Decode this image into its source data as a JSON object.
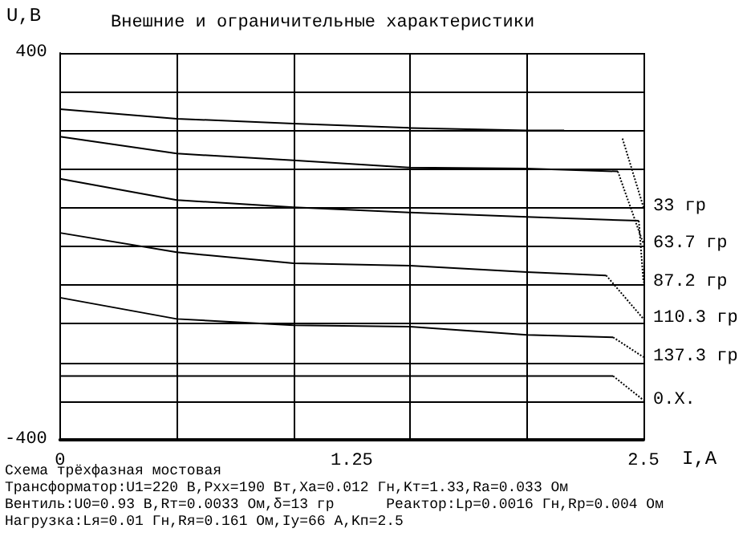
{
  "chart_data": {
    "type": "line",
    "title": "Внешние и ограничительные характеристики",
    "xlabel": "I,А",
    "ylabel": "U,В",
    "xlim": [
      0,
      2.5
    ],
    "ylim": [
      -400,
      400
    ],
    "xticks": [
      0,
      {
        "value": 0.5,
        "label": null
      },
      {
        "value": 1,
        "label": null
      },
      1.25,
      {
        "value": 1.5,
        "label": null
      },
      {
        "value": 2,
        "label": null
      },
      2.5
    ],
    "yticks": [
      {
        "value": -400,
        "label": "-400"
      },
      {
        "value": -320,
        "label": null
      },
      {
        "value": -240,
        "label": null
      },
      {
        "value": -160,
        "label": null
      },
      {
        "value": -80,
        "label": null
      },
      {
        "value": 0,
        "label": null
      },
      {
        "value": 80,
        "label": null
      },
      {
        "value": 160,
        "label": null
      },
      {
        "value": 240,
        "label": null
      },
      {
        "value": 320,
        "label": null
      },
      {
        "value": 400,
        "label": "400"
      }
    ],
    "grid": true,
    "legend": false,
    "marker": "none",
    "series": [
      {
        "color": "#000000",
        "line_style": "solid",
        "x": [
          0,
          0.5,
          1,
          1.5,
          2,
          2.16
        ],
        "values": [
          284,
          264,
          254,
          245,
          240,
          240
        ]
      },
      {
        "color": "#000000",
        "line_style": "solid",
        "x": [
          0,
          0.5,
          1,
          1.5,
          2,
          2.39
        ],
        "values": [
          227,
          192,
          178,
          163,
          161,
          155
        ]
      },
      {
        "color": "#000000",
        "line_style": "solid",
        "x": [
          0,
          0.5,
          1,
          1.5,
          2,
          2.48
        ],
        "values": [
          140,
          96,
          81,
          70,
          61,
          53
        ]
      },
      {
        "color": "#000000",
        "line_style": "solid",
        "x": [
          0,
          0.5,
          1,
          1.5,
          2,
          2.34
        ],
        "values": [
          28,
          -12,
          -35,
          -40,
          -53,
          -60
        ]
      },
      {
        "color": "#000000",
        "line_style": "solid",
        "x": [
          0,
          0.5,
          1,
          1.5,
          2,
          2.37
        ],
        "values": [
          -106,
          -150,
          -163,
          -166,
          -183,
          -188
        ]
      },
      {
        "color": "#000000",
        "line_style": "solid",
        "x": [
          0,
          2.37
        ],
        "values": [
          -268,
          -268
        ]
      },
      {
        "name": "33 гр",
        "color": "#000000",
        "line_style": "dotted",
        "x": [
          2.41,
          2.5
        ],
        "values": [
          223,
          81
        ]
      },
      {
        "name": "63.7 гр",
        "color": "#000000",
        "line_style": "dotted",
        "x": [
          2.39,
          2.5
        ],
        "values": [
          155,
          5
        ]
      },
      {
        "name": "87.2 гр",
        "color": "#000000",
        "line_style": "dotted",
        "x": [
          2.48,
          2.5
        ],
        "values": [
          53,
          -74
        ]
      },
      {
        "name": "110.3 гр",
        "color": "#000000",
        "line_style": "dotted",
        "x": [
          2.34,
          2.5
        ],
        "values": [
          -60,
          -150
        ]
      },
      {
        "name": "137.3 гр",
        "color": "#000000",
        "line_style": "dotted",
        "x": [
          2.37,
          2.5
        ],
        "values": [
          -188,
          -229
        ]
      },
      {
        "name": "0.Х.",
        "color": "#000000",
        "line_style": "dotted",
        "x": [
          2.37,
          2.5
        ],
        "values": [
          -268,
          -318
        ]
      }
    ],
    "annotations": [
      "Схема трёхфазная мостовая",
      "Трансформатор:U1=220 В,Pхх=190 Вт,Xa=0.012 Гн,Kт=1.33,Ra=0.033 Ом",
      "Вентиль:U0=0.93 В,Rт=0.0033 Ом,δ=13 гр      Реактор:Lp=0.0016 Гн,Rp=0.004 Ом",
      "Нагрузка:Lя=0.01 Гн,Rя=0.161 Ом,Iу=66 А,Kп=2.5"
    ]
  }
}
